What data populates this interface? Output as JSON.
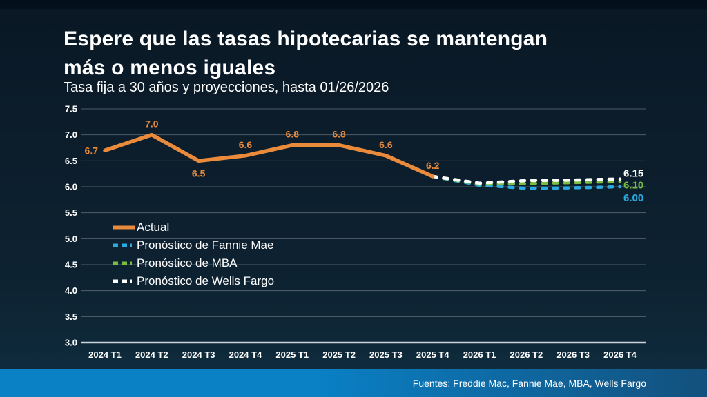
{
  "slide": {
    "title_line1": "Espere que las tasas hipotecarias se mantengan",
    "title_line2": "más o menos iguales",
    "subtitle": "Tasa fija a 30 años y proyecciones, hasta 01/26/2026",
    "footer": "Fuentes: Freddie Mac, Fannie Mae, MBA, Wells Fargo"
  },
  "colors": {
    "background_top": "#051220",
    "background_bottom": "#0f2c3e",
    "gridline": "rgba(255,255,255,0.28)",
    "axis_line": "#c9d3db",
    "footer_gradient_left": "#0a80c5",
    "footer_gradient_right": "#13507d",
    "text": "#ffffff"
  },
  "chart_data": {
    "type": "line",
    "title": "Espere que las tasas hipotecarias se mantengan más o menos iguales",
    "subtitle": "Tasa fija a 30 años y proyecciones, hasta 01/26/2026",
    "categories": [
      "2024 T1",
      "2024 T2",
      "2024 T3",
      "2024 T4",
      "2025 T1",
      "2025 T2",
      "2025 T3",
      "2025 T4",
      "2026 T1",
      "2026 T2",
      "2026 T3",
      "2026 T4"
    ],
    "ylim": [
      3.0,
      7.5
    ],
    "y_tick_step": 0.5,
    "grid": true,
    "legend_position": "inside-left",
    "series": [
      {
        "name": "Actual",
        "color": "#ea8b3c",
        "style": "solid",
        "start_index": 0,
        "values": [
          6.7,
          7.0,
          6.5,
          6.6,
          6.8,
          6.8,
          6.6,
          6.2
        ],
        "labels": [
          "6.7",
          "7.0",
          "6.5",
          "6.6",
          "6.8",
          "6.8",
          "6.6",
          "6.2"
        ],
        "label_pos": [
          "left",
          "above",
          "below",
          "above",
          "above",
          "above",
          "above",
          "above"
        ]
      },
      {
        "name": "Pronóstico de Fannie Mae",
        "color": "#2ba9e1",
        "style": "dashed",
        "start_index": 7,
        "values": [
          6.2,
          6.03,
          5.97,
          5.98,
          6.0
        ],
        "end_label": "6.00"
      },
      {
        "name": "Pronóstico de MBA",
        "color": "#79be43",
        "style": "dashed",
        "start_index": 7,
        "values": [
          6.2,
          6.05,
          6.06,
          6.08,
          6.1
        ],
        "end_label": "6.10"
      },
      {
        "name": "Pronóstico de Wells Fargo",
        "color": "#ffffff",
        "style": "dashed",
        "start_index": 7,
        "values": [
          6.2,
          6.07,
          6.12,
          6.13,
          6.15
        ],
        "end_label": "6.15"
      }
    ]
  }
}
